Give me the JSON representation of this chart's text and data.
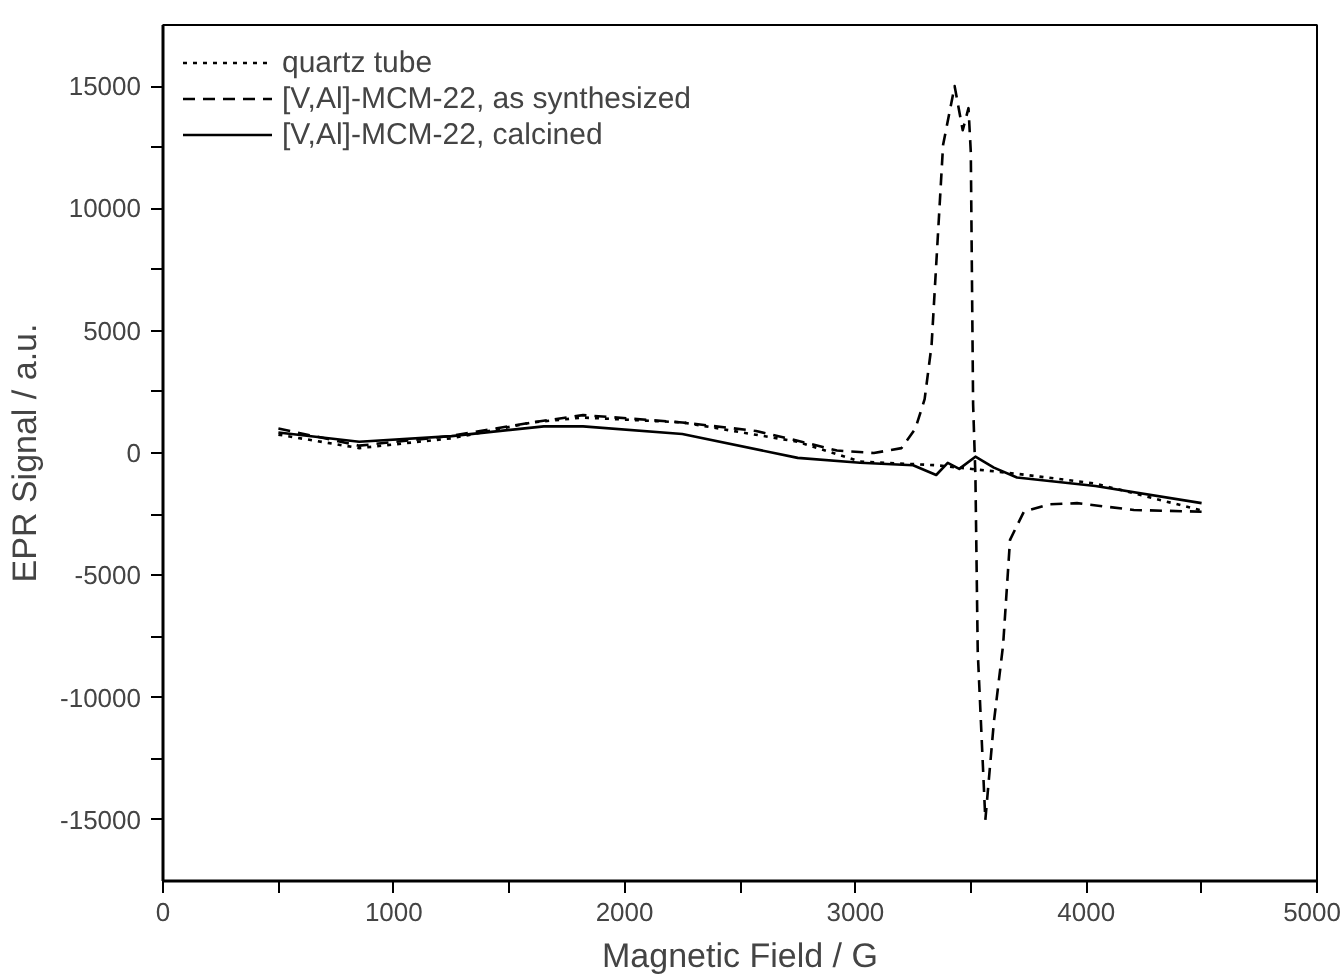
{
  "chart_data": {
    "type": "line",
    "xlabel": "Magnetic Field / G",
    "ylabel": "EPR Signal / a.u.",
    "xlim": [
      0,
      5000
    ],
    "ylim": [
      -17500,
      17500
    ],
    "xticks": [
      0,
      {
        "value": 500,
        "label": null
      },
      1000,
      {
        "value": 1500,
        "label": null
      },
      2000,
      {
        "value": 2500,
        "label": null
      },
      3000,
      {
        "value": 3500,
        "label": null
      },
      4000,
      {
        "value": 4500,
        "label": null
      },
      5000
    ],
    "yticks": [
      -15000,
      {
        "value": -12500,
        "label": null
      },
      -10000,
      {
        "value": -7500,
        "label": null
      },
      -5000,
      {
        "value": -2500,
        "label": null
      },
      0,
      {
        "value": 2500,
        "label": null
      },
      5000,
      {
        "value": 7500,
        "label": null
      },
      10000,
      {
        "value": 12500,
        "label": null
      },
      15000
    ],
    "grid": false,
    "legend": "top left",
    "marker": "none",
    "series": [
      {
        "name": "quartz tube",
        "color": "#000000",
        "line_style": "dotted",
        "x": [
          500,
          850,
          1250,
          1600,
          1820,
          2250,
          2750,
          3020,
          3350,
          3700,
          4040,
          4500
        ],
        "values": [
          750,
          200,
          600,
          1250,
          1450,
          1250,
          460,
          -350,
          -500,
          -850,
          -1250,
          -2350
        ]
      },
      {
        "name": "[V,Al]-MCM-22, as synthesized",
        "color": "#000000",
        "line_style": "dashed",
        "x": [
          500,
          850,
          1250,
          1600,
          1820,
          2250,
          2570,
          2750,
          2920,
          3080,
          3200,
          3260,
          3300,
          3330,
          3380,
          3430,
          3465,
          3490,
          3500,
          3510,
          3520,
          3530,
          3563,
          3600,
          3640,
          3670,
          3730,
          3840,
          3960,
          4207,
          4500
        ],
        "values": [
          1000,
          300,
          700,
          1250,
          1550,
          1250,
          900,
          500,
          100,
          0,
          200,
          1000,
          2200,
          4400,
          12600,
          15000,
          13200,
          14100,
          12300,
          2000,
          -950,
          -8100,
          -15000,
          -11000,
          -7850,
          -3550,
          -2400,
          -2100,
          -2050,
          -2330,
          -2400
        ]
      },
      {
        "name": "[V,Al]-MCM-22, calcined",
        "color": "#000000",
        "line_style": "solid",
        "x": [
          500,
          850,
          1250,
          1650,
          1820,
          2250,
          2750,
          3020,
          3250,
          3350,
          3400,
          3450,
          3520,
          3600,
          3700,
          4040,
          4500
        ],
        "values": [
          840,
          460,
          690,
          1090,
          1090,
          780,
          -200,
          -400,
          -500,
          -900,
          -400,
          -650,
          -150,
          -600,
          -1000,
          -1350,
          -2050
        ]
      }
    ]
  }
}
